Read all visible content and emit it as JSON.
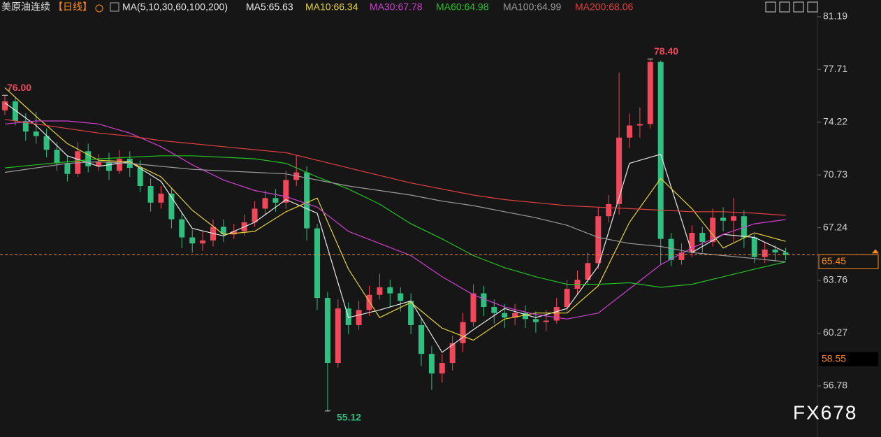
{
  "chart_data": {
    "type": "candlestick",
    "title": "美原油连续",
    "period": "【日线】",
    "ma_label": "MA(5,10,30,60,100,200)",
    "up_color": "#f0475a",
    "down_color": "#2fbf80",
    "grid": false,
    "ylim": [
      53.4,
      82.3
    ],
    "yticks": [
      81.19,
      77.71,
      74.22,
      70.73,
      67.24,
      63.76,
      60.27,
      56.78
    ],
    "open": [
      75.0,
      75.6,
      74.3,
      73.6,
      73.3,
      72.4,
      71.5,
      70.8,
      72.3,
      71.3,
      71.6,
      71.0,
      71.8,
      71.2,
      70.0,
      68.9,
      69.5,
      67.8,
      66.6,
      66.2,
      66.4,
      67.3,
      66.8,
      67.0,
      67.6,
      68.5,
      69.2,
      68.9,
      70.4,
      70.9,
      67.2,
      62.6,
      58.3,
      61.9,
      60.8,
      61.8,
      62.8,
      63.3,
      62.9,
      62.4,
      60.8,
      58.9,
      57.6,
      58.3,
      59.6,
      61.0,
      62.9,
      62.0,
      61.6,
      61.3,
      61.6,
      61.2,
      61.0,
      61.1,
      62.0,
      63.2,
      63.8,
      64.9,
      68.0,
      68.8,
      73.2,
      74.0,
      74.1,
      78.2,
      66.5,
      65.1,
      65.6,
      66.9,
      66.3,
      67.9,
      67.7,
      68.0,
      66.6,
      65.3,
      65.8,
      65.6
    ],
    "high": [
      76.0,
      75.9,
      74.8,
      74.9,
      73.8,
      72.9,
      72.0,
      72.9,
      72.8,
      72.1,
      72.2,
      72.4,
      72.3,
      71.7,
      70.5,
      70.0,
      69.9,
      68.2,
      67.1,
      67.0,
      67.8,
      67.8,
      67.5,
      68.1,
      69.0,
      69.7,
      69.8,
      71.0,
      72.0,
      71.3,
      67.5,
      63.0,
      62.5,
      62.3,
      62.4,
      63.4,
      64.2,
      63.8,
      63.3,
      62.9,
      61.2,
      59.4,
      58.9,
      60.1,
      61.6,
      63.5,
      63.4,
      62.5,
      62.2,
      62.2,
      62.1,
      61.7,
      61.8,
      62.6,
      63.8,
      64.4,
      65.6,
      68.6,
      69.4,
      77.5,
      74.8,
      75.2,
      78.4,
      78.3,
      66.9,
      66.2,
      67.4,
      67.3,
      68.5,
      68.6,
      69.2,
      68.4,
      66.8,
      66.3,
      66.1,
      65.9
    ],
    "low": [
      74.7,
      74.0,
      73.0,
      72.8,
      71.9,
      71.0,
      70.3,
      70.6,
      70.9,
      71.0,
      70.4,
      70.8,
      70.6,
      69.6,
      68.3,
      68.5,
      67.2,
      65.9,
      65.6,
      65.7,
      66.0,
      66.3,
      66.5,
      66.7,
      67.3,
      68.1,
      68.3,
      68.5,
      70.0,
      66.4,
      61.8,
      55.12,
      58.0,
      60.2,
      60.5,
      61.4,
      62.5,
      62.0,
      61.7,
      60.2,
      58.1,
      56.5,
      57.0,
      57.8,
      59.0,
      60.7,
      61.4,
      60.9,
      60.6,
      60.8,
      60.6,
      60.3,
      60.4,
      60.9,
      61.7,
      62.8,
      63.5,
      64.5,
      67.6,
      68.1,
      72.5,
      73.2,
      73.8,
      64.8,
      64.7,
      64.8,
      65.3,
      65.6,
      66.0,
      67.0,
      66.3,
      65.9,
      64.9,
      64.9,
      65.0,
      65.1
    ],
    "close": [
      75.6,
      74.3,
      73.6,
      73.3,
      72.4,
      71.5,
      70.8,
      72.3,
      71.3,
      71.6,
      71.0,
      71.8,
      71.2,
      70.0,
      68.9,
      69.5,
      67.8,
      66.6,
      66.2,
      66.4,
      67.3,
      66.8,
      67.0,
      67.6,
      68.5,
      69.2,
      68.9,
      70.4,
      70.9,
      67.2,
      62.6,
      58.3,
      61.9,
      60.8,
      61.8,
      62.8,
      63.3,
      62.9,
      62.4,
      60.8,
      58.9,
      57.6,
      58.3,
      59.6,
      61.0,
      62.9,
      62.0,
      61.6,
      61.3,
      61.6,
      61.2,
      61.0,
      61.1,
      62.0,
      63.2,
      63.8,
      64.9,
      68.0,
      68.8,
      73.2,
      74.0,
      74.1,
      78.2,
      66.5,
      65.1,
      65.6,
      66.9,
      66.3,
      67.9,
      67.7,
      68.0,
      66.6,
      65.3,
      65.8,
      65.6,
      65.45
    ],
    "ma_x": [
      0,
      3,
      6,
      9,
      12,
      15,
      18,
      21,
      24,
      27,
      30,
      33,
      36,
      39,
      42,
      45,
      48,
      51,
      54,
      57,
      60,
      63,
      66,
      69,
      72,
      75
    ],
    "series": [
      {
        "name": "MA5:65.63",
        "color": "#e8e8e8",
        "values": [
          75.5,
          74.0,
          72.0,
          71.3,
          71.6,
          70.3,
          67.2,
          66.7,
          67.6,
          69.1,
          68.2,
          61.3,
          61.8,
          62.4,
          59.0,
          60.5,
          61.9,
          61.3,
          61.9,
          64.7,
          71.5,
          72.1,
          65.6,
          66.8,
          66.6,
          65.63
        ]
      },
      {
        "name": "MA10:66.34",
        "color": "#e6d23a",
        "values": [
          76.5,
          74.6,
          72.8,
          71.7,
          71.6,
          70.6,
          68.4,
          66.8,
          67.0,
          68.3,
          69.2,
          64.5,
          61.3,
          62.3,
          60.6,
          59.8,
          61.2,
          61.6,
          61.6,
          63.4,
          67.6,
          70.5,
          68.5,
          65.9,
          66.9,
          66.34
        ]
      },
      {
        "name": "MA30:67.78",
        "color": "#d040d0",
        "values": [
          74.1,
          74.3,
          74.3,
          74.1,
          73.5,
          72.6,
          71.4,
          70.4,
          69.7,
          69.3,
          68.6,
          67.0,
          66.2,
          65.4,
          64.0,
          62.8,
          62.0,
          61.5,
          61.2,
          61.6,
          63.2,
          64.8,
          65.9,
          66.8,
          67.5,
          67.78
        ]
      },
      {
        "name": "MA60:64.98",
        "color": "#22c322",
        "values": [
          71.2,
          71.4,
          71.6,
          71.8,
          71.9,
          72.0,
          72.0,
          71.9,
          71.8,
          71.5,
          70.6,
          69.8,
          68.8,
          67.5,
          66.5,
          65.4,
          64.6,
          64.0,
          63.5,
          63.5,
          63.6,
          63.3,
          63.5,
          64.0,
          64.5,
          64.98
        ]
      },
      {
        "name": "MA100:64.99",
        "color": "#9a9a9a",
        "values": [
          70.9,
          71.2,
          71.5,
          71.6,
          71.5,
          71.3,
          71.1,
          71.0,
          70.9,
          70.8,
          70.4,
          70.0,
          69.7,
          69.4,
          69.0,
          68.7,
          68.3,
          67.9,
          67.4,
          66.6,
          66.2,
          66.0,
          65.6,
          65.4,
          65.2,
          64.99
        ]
      },
      {
        "name": "MA200:68.06",
        "color": "#e04040",
        "values": [
          74.4,
          74.1,
          73.8,
          73.5,
          73.3,
          73.0,
          72.8,
          72.6,
          72.4,
          72.2,
          71.7,
          71.2,
          70.7,
          70.2,
          69.8,
          69.4,
          69.1,
          68.9,
          68.7,
          68.6,
          68.5,
          68.4,
          68.3,
          68.3,
          68.2,
          68.06
        ]
      }
    ],
    "annotations": [
      "76.00",
      "78.40",
      "55.12"
    ],
    "last_price": 65.45,
    "cursor_price": 58.55,
    "watermark": "FX678"
  }
}
